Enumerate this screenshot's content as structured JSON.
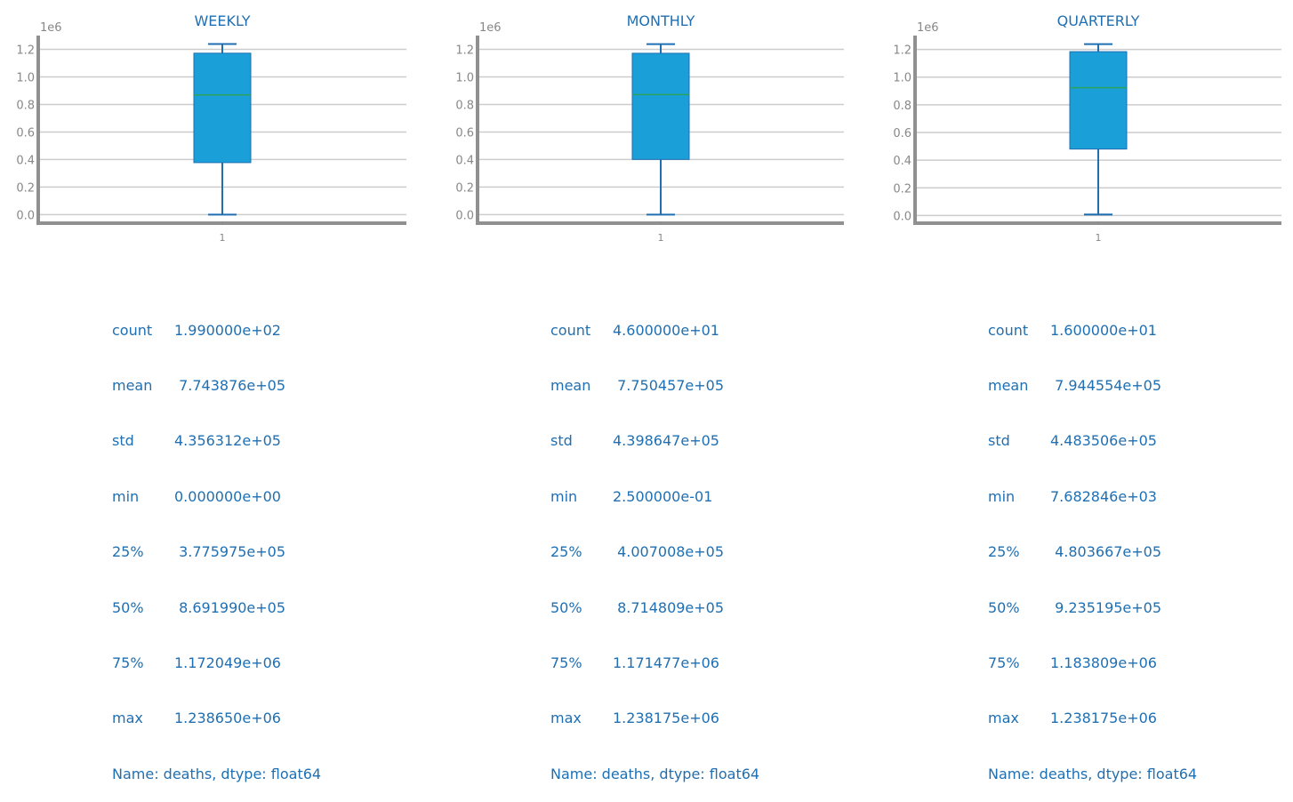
{
  "colors": {
    "box_fill": "#1a9fd8",
    "box_line": "#1f6fb2",
    "median": "#2ca25f",
    "grid": "#cccccc",
    "axis": "#909090",
    "tick_text": "#888888",
    "title": "#1f6fb2",
    "stats_text": "#1f6fb2"
  },
  "chart_data": [
    {
      "type": "box",
      "title": "WEEKLY",
      "offset_label": "1e6",
      "x_tick_labels": [
        "1"
      ],
      "y_tick_labels": [
        "0.0",
        "0.2",
        "0.4",
        "0.6",
        "0.8",
        "1.0",
        "1.2"
      ],
      "y_ticks": [
        0.0,
        0.2,
        0.4,
        0.6,
        0.8,
        1.0,
        1.2
      ],
      "ylim": [
        -0.062,
        1.3
      ],
      "grid": true,
      "box": {
        "whisker_low": 0.0,
        "q1": 0.3775975,
        "median": 0.869199,
        "q3": 1.172049,
        "whisker_high": 1.23865
      }
    },
    {
      "type": "box",
      "title": "MONTHLY",
      "offset_label": "1e6",
      "x_tick_labels": [
        "1"
      ],
      "y_tick_labels": [
        "0.0",
        "0.2",
        "0.4",
        "0.6",
        "0.8",
        "1.0",
        "1.2"
      ],
      "y_ticks": [
        0.0,
        0.2,
        0.4,
        0.6,
        0.8,
        1.0,
        1.2
      ],
      "ylim": [
        -0.062,
        1.3
      ],
      "grid": true,
      "box": {
        "whisker_low": 2.5e-07,
        "q1": 0.4007008,
        "median": 0.8714809,
        "q3": 1.171477,
        "whisker_high": 1.238175
      }
    },
    {
      "type": "box",
      "title": "QUARTERLY",
      "offset_label": "1e6",
      "x_tick_labels": [
        "1"
      ],
      "y_tick_labels": [
        "0.0",
        "0.2",
        "0.4",
        "0.6",
        "0.8",
        "1.0",
        "1.2"
      ],
      "y_ticks": [
        0.0,
        0.2,
        0.4,
        0.6,
        0.8,
        1.0,
        1.2
      ],
      "ylim": [
        -0.055,
        1.3
      ],
      "grid": true,
      "box": {
        "whisker_low": 0.007682846,
        "q1": 0.4803667,
        "median": 0.9235195,
        "q3": 1.183809,
        "whisker_high": 1.238175
      }
    }
  ],
  "stats": [
    {
      "rows": [
        {
          "key": "count",
          "value": "1.990000e+02"
        },
        {
          "key": "mean",
          "value": " 7.743876e+05"
        },
        {
          "key": "std",
          "value": "4.356312e+05"
        },
        {
          "key": "min",
          "value": "0.000000e+00"
        },
        {
          "key": "25%",
          "value": " 3.775975e+05"
        },
        {
          "key": "50%",
          "value": " 8.691990e+05"
        },
        {
          "key": "75%",
          "value": "1.172049e+06"
        },
        {
          "key": "max",
          "value": "1.238650e+06"
        }
      ],
      "footer": "Name: deaths, dtype: float64"
    },
    {
      "rows": [
        {
          "key": "count",
          "value": "4.600000e+01"
        },
        {
          "key": "mean",
          "value": " 7.750457e+05"
        },
        {
          "key": "std",
          "value": "4.398647e+05"
        },
        {
          "key": "min",
          "value": "2.500000e-01"
        },
        {
          "key": "25%",
          "value": " 4.007008e+05"
        },
        {
          "key": "50%",
          "value": " 8.714809e+05"
        },
        {
          "key": "75%",
          "value": "1.171477e+06"
        },
        {
          "key": "max",
          "value": "1.238175e+06"
        }
      ],
      "footer": "Name: deaths, dtype: float64"
    },
    {
      "rows": [
        {
          "key": "count",
          "value": "1.600000e+01"
        },
        {
          "key": "mean",
          "value": " 7.944554e+05"
        },
        {
          "key": "std",
          "value": "4.483506e+05"
        },
        {
          "key": "min",
          "value": "7.682846e+03"
        },
        {
          "key": "25%",
          "value": " 4.803667e+05"
        },
        {
          "key": "50%",
          "value": " 9.235195e+05"
        },
        {
          "key": "75%",
          "value": "1.183809e+06"
        },
        {
          "key": "max",
          "value": "1.238175e+06"
        }
      ],
      "footer": "Name: deaths, dtype: float64"
    }
  ]
}
